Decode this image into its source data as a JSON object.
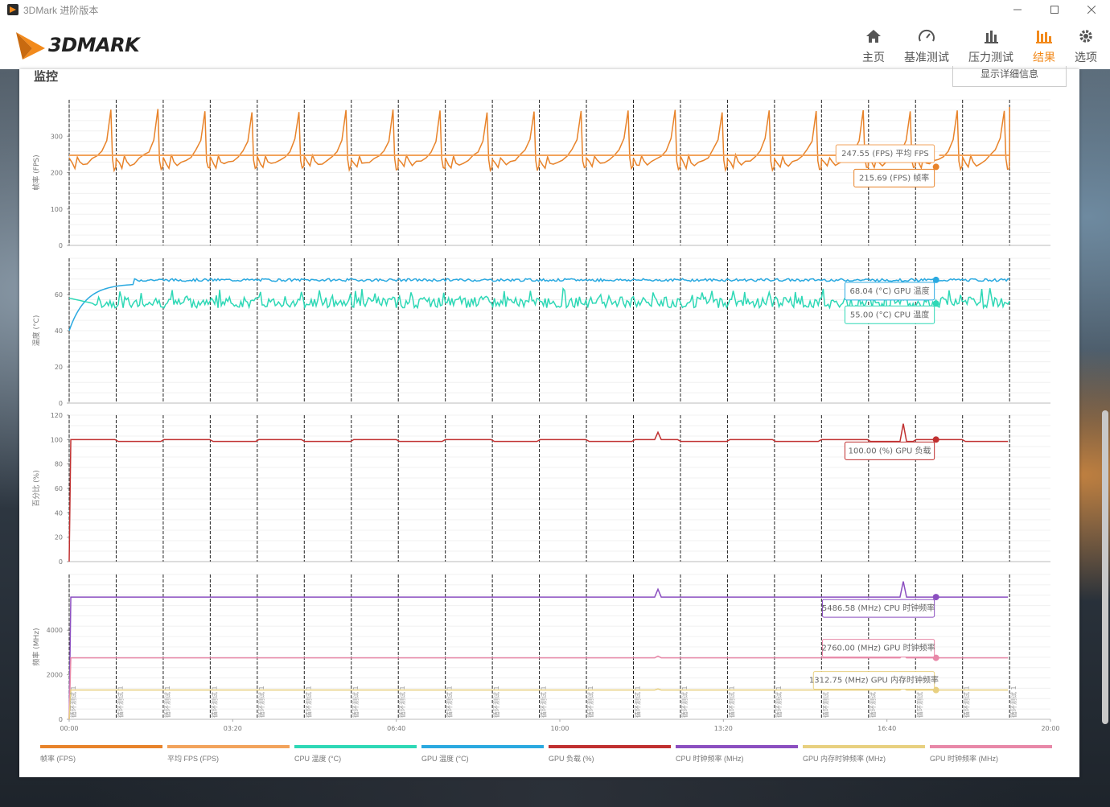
{
  "window": {
    "title": "3DMark 进阶版本"
  },
  "header": {
    "logo_text": "3DMARK",
    "nav": [
      {
        "label": "主页",
        "icon": "home-icon"
      },
      {
        "label": "基准测试",
        "icon": "speedometer-icon"
      },
      {
        "label": "压力测试",
        "icon": "stress-bars-icon"
      },
      {
        "label": "结果",
        "icon": "results-bars-icon",
        "active": true
      },
      {
        "label": "选项",
        "icon": "gear-icon"
      }
    ]
  },
  "panel": {
    "title": "监控",
    "detail_button": "显示详细信息"
  },
  "colors": {
    "fps": "#e8832a",
    "avg_fps": "#f2a35c",
    "cpu_temp": "#2ed8b6",
    "gpu_temp": "#2aa9e0",
    "gpu_load": "#c03030",
    "cpu_clock": "#8b4fc0",
    "gpu_mem_clock": "#e8d080",
    "gpu_clock": "#e888a8"
  },
  "chart_data": {
    "type": "line",
    "x_axis": {
      "ticks": [
        "00:00",
        "03:20",
        "06:40",
        "10:00",
        "13:20",
        "16:40",
        "20:00"
      ]
    },
    "loop_marker_label": "循环测试 1",
    "panels": [
      {
        "ylabel": "帧率 (FPS)",
        "yticks": [
          "300",
          "200",
          "100",
          "0"
        ],
        "ylim": [
          0,
          400
        ],
        "series": [
          {
            "name": "帧率 (FPS)",
            "pattern": "sawtooth",
            "min": 210,
            "max": 370
          },
          {
            "name": "平均 FPS (FPS)",
            "value": 247.55
          }
        ],
        "tooltips": [
          {
            "text": "247.55 (FPS) 平均 FPS"
          },
          {
            "text": "215.69 (FPS) 帧率"
          }
        ]
      },
      {
        "ylabel": "温度 (°C)",
        "yticks": [
          "60",
          "40",
          "20",
          "0"
        ],
        "ylim": [
          0,
          80
        ],
        "series": [
          {
            "name": "GPU 温度 (°C)",
            "start": 40,
            "steady": 68
          },
          {
            "name": "CPU 温度 (°C)",
            "start": 58,
            "steady": 55
          }
        ],
        "tooltips": [
          {
            "text": "68.04 (°C) GPU 温度"
          },
          {
            "text": "55.00 (°C) CPU 温度"
          }
        ]
      },
      {
        "ylabel": "百分比 (%)",
        "yticks": [
          "120",
          "100",
          "80",
          "60",
          "40",
          "20",
          "0"
        ],
        "ylim": [
          0,
          120
        ],
        "series": [
          {
            "name": "GPU 负载 (%)",
            "steady": 100
          }
        ],
        "tooltips": [
          {
            "text": "100.00 (%) GPU 负载"
          }
        ]
      },
      {
        "ylabel": "频率 (MHz)",
        "yticks": [
          "4000",
          "2000",
          "0"
        ],
        "ylim": [
          0,
          6500
        ],
        "series": [
          {
            "name": "CPU 时钟频率 (MHz)",
            "steady": 5486.58
          },
          {
            "name": "GPU 时钟频率 (MHz)",
            "steady": 2760.0
          },
          {
            "name": "GPU 内存时钟频率 (MHz)",
            "steady": 1312.75
          }
        ],
        "tooltips": [
          {
            "text": "5486.58 (MHz) CPU 时钟频率"
          },
          {
            "text": "2760.00 (MHz) GPU 时钟频率"
          },
          {
            "text": "1312.75 (MHz) GPU 内存时钟频率"
          }
        ]
      }
    ],
    "legend": [
      "帧率 (FPS)",
      "平均 FPS (FPS)",
      "CPU 温度 (°C)",
      "GPU 温度 (°C)",
      "GPU 负载 (%)",
      "CPU 时钟频率 (MHz)",
      "GPU 内存时钟频率 (MHz)",
      "GPU 时钟频率 (MHz)"
    ]
  }
}
